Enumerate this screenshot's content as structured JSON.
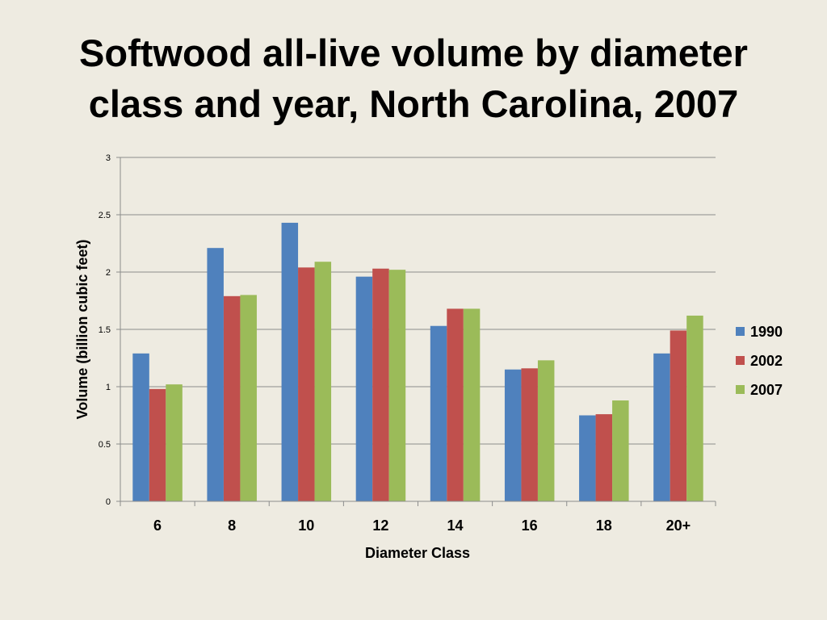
{
  "slide": {
    "title_lines": [
      "Softwood all-live volume by diameter",
      "class and year, North Carolina, 2007"
    ]
  },
  "chart_data": {
    "type": "bar",
    "title": "Softwood all-live volume by diameter class and year, North Carolina, 2007",
    "xlabel": "Diameter Class",
    "ylabel": "Volume (billion cubic feet)",
    "ylim": [
      0,
      3
    ],
    "yticks": [
      0,
      0.5,
      1,
      1.5,
      2,
      2.5,
      3
    ],
    "ytick_labels": [
      "0",
      "0.5",
      "1",
      "1.5",
      "2",
      "2.5",
      "3"
    ],
    "grid": true,
    "legend_position": "right",
    "categories": [
      "6",
      "8",
      "10",
      "12",
      "14",
      "16",
      "18",
      "20+"
    ],
    "series": [
      {
        "name": "1990",
        "color": "#4f81bd",
        "values": [
          1.29,
          2.21,
          2.43,
          1.96,
          1.53,
          1.15,
          0.75,
          1.29
        ]
      },
      {
        "name": "2002",
        "color": "#c0504d",
        "values": [
          0.98,
          1.79,
          2.04,
          2.03,
          1.68,
          1.16,
          0.76,
          1.49
        ]
      },
      {
        "name": "2007",
        "color": "#9bbb59",
        "values": [
          1.02,
          1.8,
          2.09,
          2.02,
          1.68,
          1.23,
          0.88,
          1.62
        ]
      }
    ]
  }
}
